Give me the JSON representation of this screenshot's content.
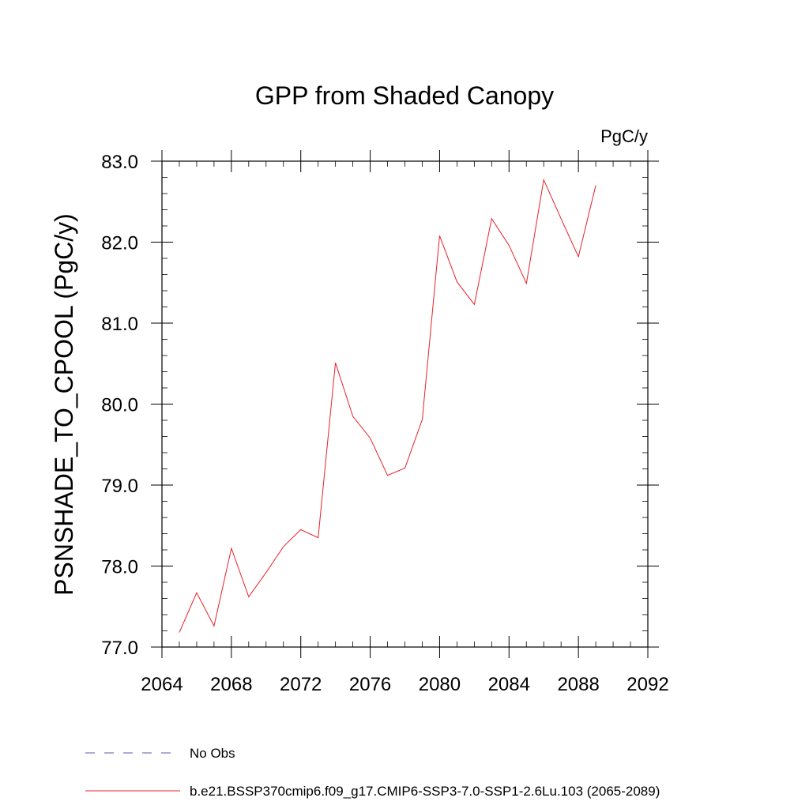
{
  "chart_data": {
    "type": "line",
    "title": "GPP from Shaded Canopy",
    "units": "PgC/y",
    "ylabel": "PSNSHADE_TO_CPOOL  (PgC/y)",
    "xlabel": "",
    "xlim": [
      2064,
      2092
    ],
    "ylim": [
      77.0,
      83.0
    ],
    "x_ticks": [
      2064,
      2068,
      2072,
      2076,
      2080,
      2084,
      2088,
      2092
    ],
    "y_ticks": [
      77.0,
      78.0,
      79.0,
      80.0,
      81.0,
      82.0,
      83.0
    ],
    "x_tick_labels": [
      "2064",
      "2068",
      "2072",
      "2076",
      "2080",
      "2084",
      "2088",
      "2092"
    ],
    "y_tick_labels": [
      "77.0",
      "78.0",
      "79.0",
      "80.0",
      "81.0",
      "82.0",
      "83.0"
    ],
    "grid": false,
    "legend_position": "bottom",
    "legend": [
      {
        "label": "No Obs",
        "color": "#6655aa",
        "style": "dashed"
      },
      {
        "label": "b.e21.BSSP370cmip6.f09_g17.CMIP6-SSP3-7.0-SSP1-2.6Lu.103 (2065-2089)",
        "color": "#e8202a",
        "style": "solid"
      }
    ],
    "series": [
      {
        "name": "b.e21.BSSP370cmip6.f09_g17.CMIP6-SSP3-7.0-SSP1-2.6Lu.103 (2065-2089)",
        "color": "#e8202a",
        "x": [
          2065,
          2066,
          2067,
          2068,
          2069,
          2070,
          2071,
          2072,
          2073,
          2074,
          2075,
          2076,
          2077,
          2078,
          2079,
          2080,
          2081,
          2082,
          2083,
          2084,
          2085,
          2086,
          2087,
          2088,
          2089
        ],
        "y": [
          77.18,
          77.67,
          77.26,
          78.22,
          77.62,
          77.92,
          78.24,
          78.45,
          78.35,
          80.51,
          79.85,
          79.58,
          79.12,
          79.21,
          79.81,
          82.08,
          81.51,
          81.23,
          82.29,
          81.96,
          81.49,
          82.77,
          82.29,
          81.82,
          82.7
        ]
      }
    ]
  }
}
